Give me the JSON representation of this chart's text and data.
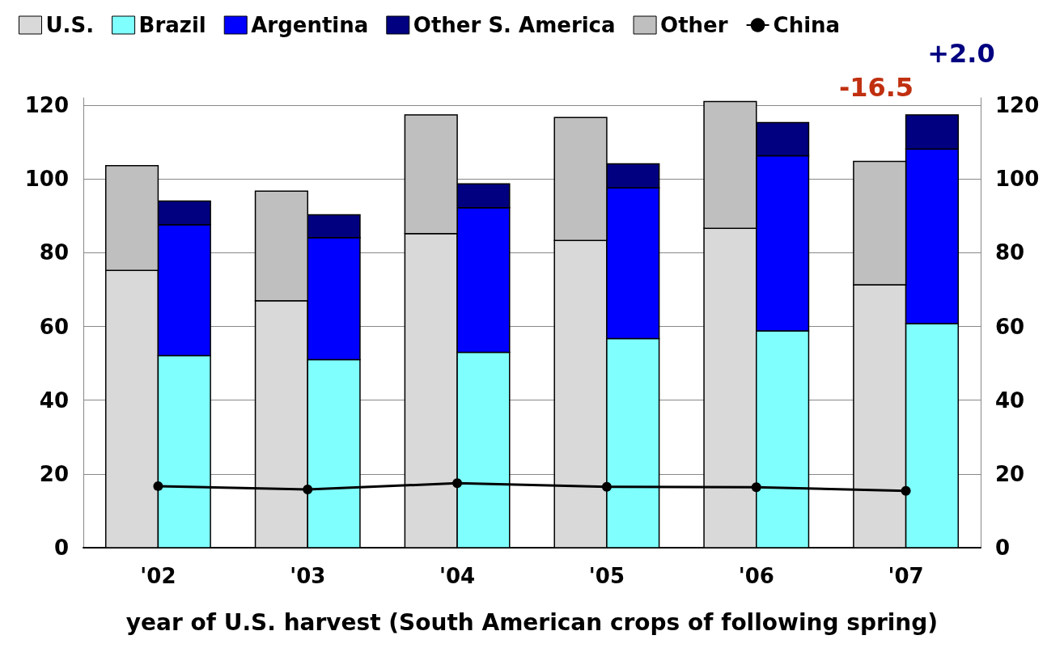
{
  "chart_data": {
    "type": "bar",
    "stacked": true,
    "xlabel": "year of U.S. harvest (South American crops of following spring)",
    "xlim": [
      2001.5,
      2007.5
    ],
    "x": [
      2001.825,
      2002.175,
      2002.825,
      2003.175,
      2003.825,
      2004.175,
      2004.825,
      2005.175,
      2005.825,
      2006.175,
      2006.825,
      2007.175
    ],
    "xticks": [
      {
        "value": 2002,
        "label": "'02"
      },
      {
        "value": 2003,
        "label": "'03"
      },
      {
        "value": 2004,
        "label": "'04"
      },
      {
        "value": 2005,
        "label": "'05"
      },
      {
        "value": 2006,
        "label": "'06"
      },
      {
        "value": 2007,
        "label": "'07"
      }
    ],
    "series": [
      {
        "name": "U.S.",
        "color": "#d9d9d9",
        "values": [
          75.2,
          null,
          67.0,
          null,
          85.2,
          null,
          83.3,
          null,
          86.6,
          null,
          71.3,
          null
        ]
      },
      {
        "name": "Brazil",
        "color": "#80ffff",
        "values": [
          null,
          52.1,
          null,
          51.0,
          null,
          53.0,
          null,
          56.7,
          null,
          58.8,
          null,
          60.8
        ]
      },
      {
        "name": "Argentina",
        "color": "#0000ff",
        "values": [
          null,
          35.5,
          null,
          33.1,
          null,
          39.2,
          null,
          40.9,
          null,
          47.5,
          null,
          47.3
        ]
      },
      {
        "name": "Other S. America",
        "color": "#000080",
        "values": [
          null,
          6.4,
          null,
          6.2,
          null,
          6.5,
          null,
          6.5,
          null,
          9.0,
          null,
          9.3
        ]
      },
      {
        "name": "Other",
        "color": "#bfbfbf",
        "values": [
          28.4,
          null,
          29.7,
          null,
          32.2,
          null,
          33.4,
          null,
          34.4,
          null,
          33.5,
          null
        ]
      },
      {
        "name": "China",
        "type": "line",
        "color": "#000000",
        "x": [
          2002,
          2003,
          2004,
          2005,
          2006,
          2007
        ],
        "values": [
          16.7,
          15.8,
          17.5,
          16.5,
          16.4,
          15.4
        ]
      }
    ],
    "ylim": [
      0,
      122
    ],
    "yticks": [
      0,
      20,
      40,
      60,
      80,
      100,
      120
    ],
    "y2lim": [
      0,
      122
    ],
    "y2ticks": [
      0,
      20,
      40,
      60,
      80,
      100,
      120
    ],
    "grid": "y",
    "legend": "top left",
    "marker": "circle",
    "annotations": [
      "-16.5",
      "+2.0"
    ]
  }
}
